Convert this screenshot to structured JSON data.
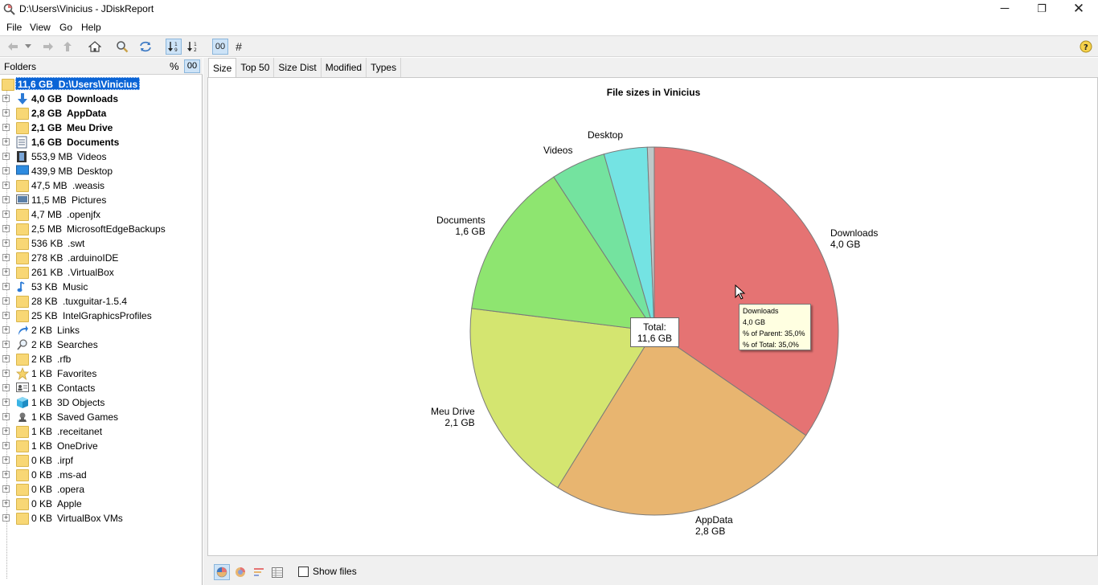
{
  "window": {
    "title": "D:\\Users\\Vinicius - JDiskReport",
    "minimize": "─",
    "maximize": "❐",
    "close": "✕"
  },
  "menu": [
    "File",
    "View",
    "Go",
    "Help"
  ],
  "toolbar": {
    "icons": [
      "back-icon",
      "dropdown-icon",
      "forward-icon",
      "up-icon",
      "home-icon",
      "search-icon",
      "refresh-icon",
      "sort-size-icon",
      "sort-name-icon"
    ],
    "oo_label": "00",
    "hash_label": "#",
    "help": "?"
  },
  "sidebar": {
    "header": "Folders",
    "percent_label": "%",
    "oo_label": "00",
    "root": {
      "size": "11,6 GB",
      "name": "D:\\Users\\Vinicius"
    },
    "items": [
      {
        "size": "4,0 GB",
        "name": "Downloads",
        "bold": true,
        "icon": "download-arrow-icon"
      },
      {
        "size": "2,8 GB",
        "name": "AppData",
        "bold": true,
        "icon": "folder-icon"
      },
      {
        "size": "2,1 GB",
        "name": "Meu Drive",
        "bold": true,
        "icon": "folder-icon"
      },
      {
        "size": "1,6 GB",
        "name": "Documents",
        "bold": true,
        "icon": "document-icon"
      },
      {
        "size": "553,9 MB",
        "name": "Videos",
        "bold": false,
        "icon": "film-icon"
      },
      {
        "size": "439,9 MB",
        "name": "Desktop",
        "bold": false,
        "icon": "desktop-icon"
      },
      {
        "size": "47,5 MB",
        "name": ".weasis",
        "bold": false,
        "icon": "folder-icon"
      },
      {
        "size": "11,5 MB",
        "name": "Pictures",
        "bold": false,
        "icon": "picture-icon"
      },
      {
        "size": "4,7 MB",
        "name": ".openjfx",
        "bold": false,
        "icon": "folder-icon"
      },
      {
        "size": "2,5 MB",
        "name": "MicrosoftEdgeBackups",
        "bold": false,
        "icon": "folder-icon"
      },
      {
        "size": "536 KB",
        "name": ".swt",
        "bold": false,
        "icon": "folder-icon"
      },
      {
        "size": "278 KB",
        "name": ".arduinoIDE",
        "bold": false,
        "icon": "folder-icon"
      },
      {
        "size": "261 KB",
        "name": ".VirtualBox",
        "bold": false,
        "icon": "folder-icon"
      },
      {
        "size": "53 KB",
        "name": "Music",
        "bold": false,
        "icon": "music-note-icon"
      },
      {
        "size": "28 KB",
        "name": ".tuxguitar-1.5.4",
        "bold": false,
        "icon": "folder-icon"
      },
      {
        "size": "25 KB",
        "name": "IntelGraphicsProfiles",
        "bold": false,
        "icon": "folder-icon"
      },
      {
        "size": "2 KB",
        "name": "Links",
        "bold": false,
        "icon": "link-arrow-icon"
      },
      {
        "size": "2 KB",
        "name": "Searches",
        "bold": false,
        "icon": "search-icon"
      },
      {
        "size": "2 KB",
        "name": ".rfb",
        "bold": false,
        "icon": "folder-icon"
      },
      {
        "size": "1 KB",
        "name": "Favorites",
        "bold": false,
        "icon": "star-icon"
      },
      {
        "size": "1 KB",
        "name": "Contacts",
        "bold": false,
        "icon": "contact-card-icon"
      },
      {
        "size": "1 KB",
        "name": "3D Objects",
        "bold": false,
        "icon": "cube-icon"
      },
      {
        "size": "1 KB",
        "name": "Saved Games",
        "bold": false,
        "icon": "game-piece-icon"
      },
      {
        "size": "1 KB",
        "name": ".receitanet",
        "bold": false,
        "icon": "folder-icon"
      },
      {
        "size": "1 KB",
        "name": "OneDrive",
        "bold": false,
        "icon": "folder-icon"
      },
      {
        "size": "0 KB",
        "name": ".irpf",
        "bold": false,
        "icon": "folder-icon"
      },
      {
        "size": "0 KB",
        "name": ".ms-ad",
        "bold": false,
        "icon": "folder-icon"
      },
      {
        "size": "0 KB",
        "name": ".opera",
        "bold": false,
        "icon": "folder-icon"
      },
      {
        "size": "0 KB",
        "name": "Apple",
        "bold": false,
        "icon": "folder-icon"
      },
      {
        "size": "0 KB",
        "name": "VirtualBox VMs",
        "bold": false,
        "icon": "folder-icon"
      }
    ]
  },
  "tabs": [
    "Size",
    "Top 50",
    "Size Dist",
    "Modified",
    "Types"
  ],
  "active_tab": "Size",
  "chart_data": {
    "type": "pie",
    "title": "File sizes in Vinicius",
    "unit": "GB",
    "slices": [
      {
        "name": "Downloads",
        "label": "4,0 GB",
        "value": 4.0,
        "color": "#e57373"
      },
      {
        "name": "AppData",
        "label": "2,8 GB",
        "value": 2.8,
        "color": "#e8b570"
      },
      {
        "name": "Meu Drive",
        "label": "2,1 GB",
        "value": 2.1,
        "color": "#d4e570"
      },
      {
        "name": "Documents",
        "label": "1,6 GB",
        "value": 1.6,
        "color": "#8ee570"
      },
      {
        "name": "Videos",
        "label": "",
        "value": 0.554,
        "color": "#74e39f"
      },
      {
        "name": "Desktop",
        "label": "",
        "value": 0.44,
        "color": "#74e3e3"
      },
      {
        "name": "",
        "label": "",
        "value": 0.07,
        "color": "#bfc7c7"
      }
    ],
    "total": {
      "label": "Total:",
      "value": "11,6 GB"
    },
    "tooltip": {
      "name": "Downloads",
      "size": "4,0 GB",
      "parent_line": "% of Parent: 35,0%",
      "total_line": "% of Total: 35,0%"
    }
  },
  "bottom": {
    "icons": [
      "pie-chart-icon",
      "ring-chart-icon",
      "bar-chart-icon",
      "table-icon"
    ],
    "show_files_label": "Show files",
    "show_files_checked": false
  }
}
